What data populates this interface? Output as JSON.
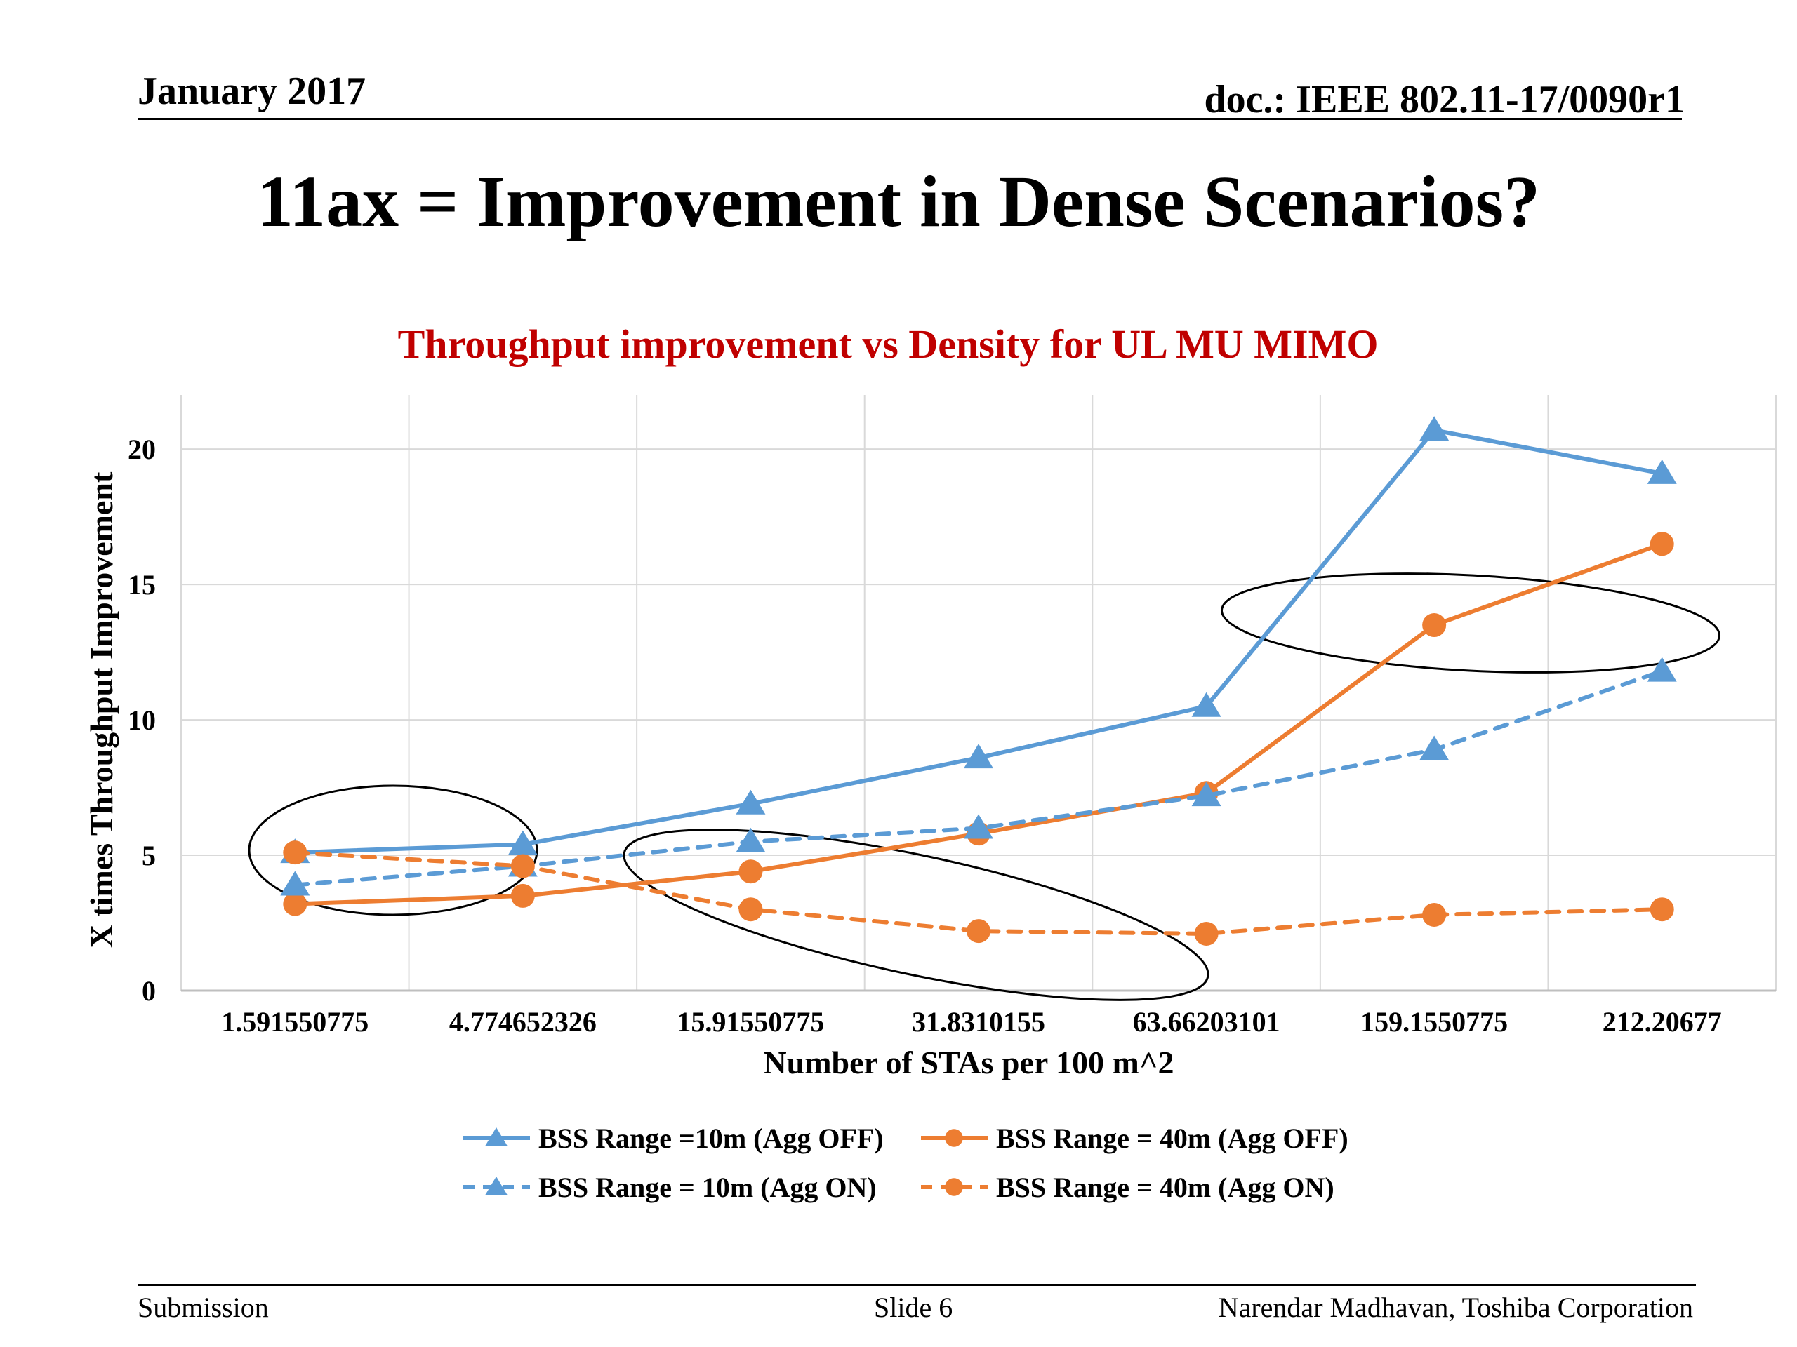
{
  "header": {
    "date": "January 2017",
    "doc": "doc.: IEEE 802.11-17/0090r1"
  },
  "slide_title": "11ax = Improvement in Dense Scenarios?",
  "footer": {
    "left": "Submission",
    "center": "Slide 6",
    "right": "Narendar Madhavan, Toshiba Corporation"
  },
  "chart_data": {
    "type": "line",
    "title": "Throughput improvement vs Density for UL MU MIMO",
    "xlabel": "Number of STAs per 100 m^2",
    "ylabel": "X times Throughput Improvement",
    "categories": [
      "1.591550775",
      "4.774652326",
      "15.91550775",
      "31.8310155",
      "63.66203101",
      "159.1550775",
      "212.20677"
    ],
    "ylim": [
      0,
      22
    ],
    "yticks": [
      0,
      5,
      10,
      15,
      20
    ],
    "grid": true,
    "legend_position": "bottom",
    "series": [
      {
        "name": "BSS Range =10m (Agg OFF)",
        "color": "#5B9BD5",
        "dash": false,
        "marker": "triangle",
        "values": [
          5.1,
          5.4,
          6.9,
          8.6,
          10.5,
          20.7,
          19.1
        ]
      },
      {
        "name": "BSS Range = 40m (Agg OFF)",
        "color": "#ED7D31",
        "dash": false,
        "marker": "circle",
        "values": [
          3.2,
          3.5,
          4.4,
          5.8,
          7.3,
          13.5,
          16.5
        ]
      },
      {
        "name": "BSS Range = 10m (Agg ON)",
        "color": "#5B9BD5",
        "dash": true,
        "marker": "triangle",
        "values": [
          3.9,
          4.6,
          5.5,
          6.0,
          7.2,
          8.9,
          11.8
        ]
      },
      {
        "name": "BSS Range = 40m (Agg ON)",
        "color": "#ED7D31",
        "dash": true,
        "marker": "circle",
        "values": [
          5.1,
          4.6,
          3.0,
          2.2,
          2.1,
          2.8,
          3.0
        ]
      }
    ]
  }
}
